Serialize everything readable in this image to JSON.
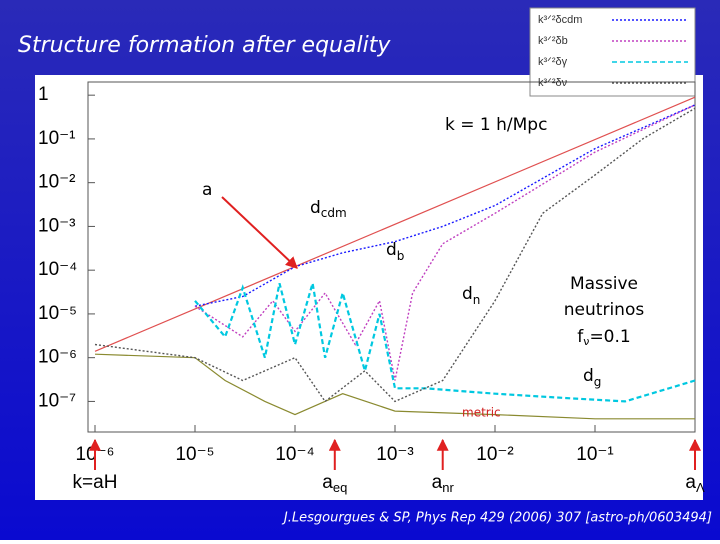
{
  "chart_data": {
    "type": "line",
    "title": "Structure formation after equality",
    "log_x": true,
    "log_y": true,
    "xlim": [
      1e-06,
      1
    ],
    "xticks": [
      {
        "value": 1e-06,
        "label": "10⁻⁶"
      },
      {
        "value": 1e-05,
        "label": "10⁻⁵"
      },
      {
        "value": 0.0001,
        "label": "10⁻⁴"
      },
      {
        "value": 0.001,
        "label": "10⁻³"
      },
      {
        "value": 0.01,
        "label": "10⁻²"
      },
      {
        "value": 0.1,
        "label": "10⁻¹"
      }
    ],
    "ylim": [
      2e-08,
      2
    ],
    "yticks": [
      1,
      {
        "value": 0.1,
        "label": "10⁻¹"
      },
      {
        "value": 0.01,
        "label": "10⁻²"
      },
      {
        "value": 0.001,
        "label": "10⁻³"
      },
      {
        "value": 0.0001,
        "label": "10⁻⁴"
      },
      {
        "value": 1e-05,
        "label": "10⁻⁵"
      },
      {
        "value": 1e-06,
        "label": "10⁻⁶"
      },
      {
        "value": 1e-07,
        "label": "10⁻⁷"
      }
    ],
    "series": [
      {
        "name": "k³ᐟ²δcdm",
        "color": "#1a1aff",
        "dash": "2 2",
        "x": [
          1e-05,
          3e-05,
          0.0001,
          0.0003,
          0.001,
          0.003,
          0.01,
          0.1,
          1
        ],
        "values": [
          1.5e-05,
          2.5e-05,
          0.00012,
          0.00025,
          0.00045,
          0.001,
          0.003,
          0.06,
          0.6
        ]
      },
      {
        "name": "k³ᐟ²δb",
        "color": "#c040c0",
        "dash": "2 2",
        "x": [
          1e-05,
          3e-05,
          6e-05,
          0.0001,
          0.0002,
          0.0004,
          0.0007,
          0.001,
          0.0015,
          0.003,
          0.01,
          0.1,
          1
        ],
        "values": [
          1.5e-05,
          3e-06,
          2e-05,
          4e-06,
          3e-05,
          2e-06,
          2e-05,
          3e-07,
          3e-05,
          0.0004,
          0.002,
          0.05,
          0.6
        ]
      },
      {
        "name": "k³ᐟ²δγ",
        "color": "#00c8e0",
        "dash": "5 3",
        "x": [
          1e-05,
          2e-05,
          3e-05,
          5e-05,
          7e-05,
          0.0001,
          0.00015,
          0.0002,
          0.0003,
          0.0005,
          0.0007,
          0.001,
          0.002,
          0.01,
          0.05,
          0.2,
          1
        ],
        "values": [
          2e-05,
          3e-06,
          4e-05,
          1e-06,
          5e-05,
          2e-06,
          5e-05,
          1e-06,
          3e-05,
          5e-07,
          1e-05,
          2e-07,
          2e-07,
          1.5e-07,
          1.2e-07,
          1e-07,
          3e-07
        ]
      },
      {
        "name": "k³ᐟ²δν",
        "color": "#555555",
        "dash": "2 2",
        "x": [
          1e-06,
          1e-05,
          3e-05,
          0.0001,
          0.0002,
          0.0005,
          0.001,
          0.003,
          0.01,
          0.03,
          0.1,
          0.3,
          1
        ],
        "values": [
          2e-06,
          1e-06,
          3e-07,
          1e-06,
          1e-07,
          5e-07,
          1e-07,
          3e-07,
          2e-05,
          0.002,
          0.015,
          0.1,
          0.5
        ]
      }
    ],
    "reference_lines": [
      {
        "color": "#e05050",
        "x": [
          1e-06,
          1
        ],
        "values": [
          1.4e-06,
          0.9
        ]
      },
      {
        "color": "#8a8a30",
        "x": [
          1e-06,
          1e-05,
          2e-05,
          5e-05,
          0.0001,
          0.0003,
          0.001,
          0.01,
          0.1,
          1
        ],
        "values": [
          1.2e-06,
          1e-06,
          3e-07,
          1e-07,
          5e-08,
          1.5e-07,
          6e-08,
          5e-08,
          4e-08,
          4e-08
        ]
      }
    ],
    "markers": [
      {
        "x": 1e-06,
        "label": "k=aH"
      },
      {
        "x": 0.00025,
        "label": "a",
        "sub": "eq"
      },
      {
        "x": 0.003,
        "label": "a",
        "sub": "nr"
      },
      {
        "x": 1,
        "label": "a",
        "sub": "Λ"
      }
    ],
    "annotations": {
      "k_label": "k = 1 h/Mpc",
      "a_label": "a",
      "cdm": {
        "text": "d",
        "sub": "cdm"
      },
      "b": {
        "text": "d",
        "sub": "b"
      },
      "n": {
        "text": "d",
        "sub": "n"
      },
      "g": {
        "text": "d",
        "sub": "g"
      },
      "metric": "metric",
      "massive": [
        "Massive",
        "neutrinos",
        "f",
        "ν",
        "=0.1"
      ]
    },
    "citation": "J.Lesgourgues & SP, Phys Rep 429 (2006) 307 [astro-ph/0603494]"
  }
}
